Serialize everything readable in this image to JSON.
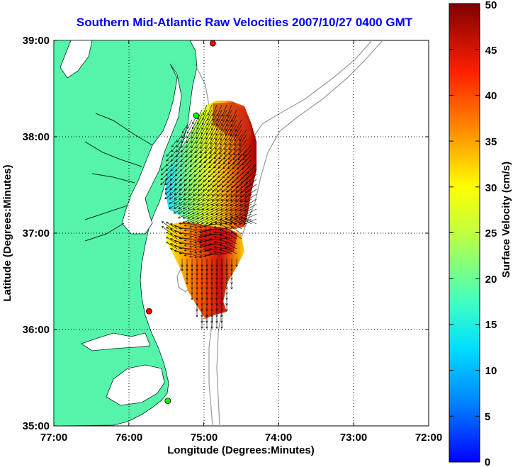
{
  "title": "Southern Mid-Atlantic Raw Velocities 2007/10/27 0400 GMT",
  "x_axis": {
    "label": "Longitude (Degrees:Minutes)",
    "ticks": [
      "77:00",
      "76:00",
      "75:00",
      "74:00",
      "73:00",
      "72:00"
    ]
  },
  "y_axis": {
    "label": "Latitude (Degrees:Minutes)",
    "ticks": [
      "39:00",
      "38:00",
      "37:00",
      "36:00",
      "35:00"
    ]
  },
  "colorbar": {
    "label": "Surface Velocity (cm/s)",
    "ticks": [
      "0",
      "5",
      "10",
      "15",
      "20",
      "25",
      "30",
      "35",
      "40",
      "45",
      "50"
    ],
    "min": 0,
    "max": 50
  },
  "chart_data": {
    "type": "heatmap",
    "xlim": [
      -77,
      -72
    ],
    "ylim": [
      35,
      39
    ],
    "grid": true,
    "colormap": "jet",
    "land_color": "#55f4aa",
    "bathymetry_color": "#999999",
    "arrow_color": "#000000",
    "station_markers": [
      {
        "lon": -74.88,
        "lat": 38.97,
        "color": "#ff0000"
      },
      {
        "lon": -75.1,
        "lat": 38.22,
        "color": "#00ff00"
      },
      {
        "lon": -75.73,
        "lat": 36.19,
        "color": "#ff0000"
      },
      {
        "lon": -75.48,
        "lat": 35.26,
        "color": "#00ff00"
      }
    ]
  }
}
